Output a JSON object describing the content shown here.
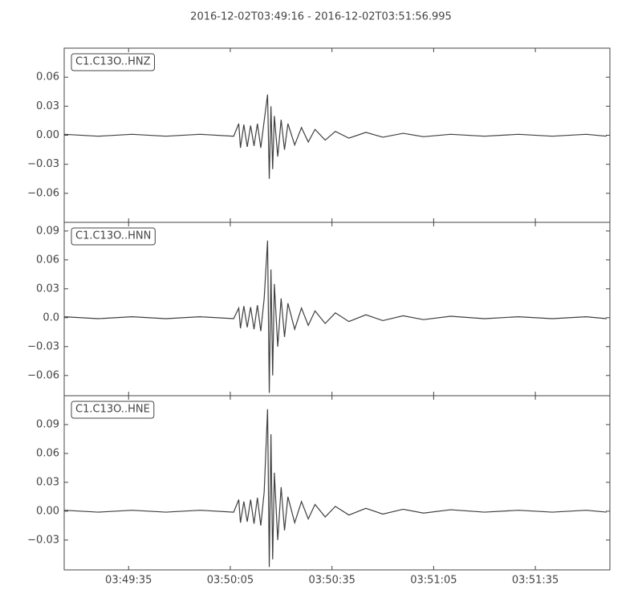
{
  "title": "2016-12-02T03:49:16  -  2016-12-02T03:51:56.995",
  "chart_data": [
    {
      "type": "line",
      "label": "C1.C13O..HNZ",
      "color": "#3f3f3f",
      "x": [
        13756,
        13766,
        13776,
        13786,
        13796,
        13806,
        13807.5,
        13808,
        13809,
        13810,
        13811,
        13812,
        13813,
        13814,
        13815,
        13816,
        13816.5,
        13817,
        13817.5,
        13818,
        13819,
        13820,
        13821,
        13822,
        13824,
        13826,
        13828,
        13830,
        13833,
        13836,
        13840,
        13845,
        13850,
        13856,
        13862,
        13870,
        13880,
        13890,
        13900,
        13910,
        13916
      ],
      "values": [
        0.001,
        -0.001,
        0.001,
        -0.001,
        0.001,
        -0.001,
        0.012,
        -0.013,
        0.011,
        -0.012,
        0.01,
        -0.011,
        0.012,
        -0.013,
        0.015,
        0.042,
        -0.045,
        0.03,
        -0.035,
        0.02,
        -0.022,
        0.016,
        -0.015,
        0.012,
        -0.01,
        0.008,
        -0.007,
        0.006,
        -0.005,
        0.004,
        -0.003,
        0.003,
        -0.002,
        0.002,
        -0.0015,
        0.001,
        -0.001,
        0.001,
        -0.001,
        0.001,
        -0.001
      ],
      "xlim": [
        13756,
        13916.995
      ],
      "ylim": [
        -0.09,
        0.09
      ],
      "yticks": [
        0.06,
        0.03,
        {
          "value": 0,
          "label": "0.00"
        },
        {
          "value": -0.03,
          "label": "−0.03"
        },
        {
          "value": -0.06,
          "label": "−0.06"
        }
      ]
    },
    {
      "type": "line",
      "label": "C1.C13O..HNN",
      "color": "#3f3f3f",
      "x": [
        13756,
        13766,
        13776,
        13786,
        13796,
        13806,
        13807.5,
        13808,
        13809,
        13810,
        13811,
        13812,
        13813,
        13814,
        13815,
        13816,
        13816.5,
        13817,
        13817.5,
        13818,
        13819,
        13820,
        13821,
        13822,
        13824,
        13826,
        13828,
        13830,
        13833,
        13836,
        13840,
        13845,
        13850,
        13856,
        13862,
        13870,
        13880,
        13890,
        13900,
        13910,
        13916
      ],
      "values": [
        0.001,
        -0.001,
        0.001,
        -0.001,
        0.001,
        -0.001,
        0.01,
        -0.011,
        0.012,
        -0.01,
        0.011,
        -0.012,
        0.013,
        -0.014,
        0.02,
        0.08,
        -0.078,
        0.05,
        -0.06,
        0.035,
        -0.03,
        0.02,
        -0.02,
        0.015,
        -0.012,
        0.01,
        -0.008,
        0.007,
        -0.006,
        0.005,
        -0.004,
        0.003,
        -0.003,
        0.002,
        -0.002,
        0.0015,
        -0.001,
        0.001,
        -0.001,
        0.001,
        -0.001
      ],
      "xlim": [
        13756,
        13916.995
      ],
      "ylim": [
        -0.081,
        0.099
      ],
      "yticks": [
        0.09,
        0.06,
        0.03,
        {
          "value": 0,
          "label": "0.0"
        },
        {
          "value": -0.03,
          "label": "−0.03"
        },
        {
          "value": -0.06,
          "label": "−0.06"
        }
      ]
    },
    {
      "type": "line",
      "label": "C1.C13O..HNE",
      "color": "#3f3f3f",
      "x": [
        13756,
        13766,
        13776,
        13786,
        13796,
        13806,
        13807.5,
        13808,
        13809,
        13810,
        13811,
        13812,
        13813,
        13814,
        13815,
        13816,
        13816.5,
        13817,
        13817.5,
        13818,
        13819,
        13820,
        13821,
        13822,
        13824,
        13826,
        13828,
        13830,
        13833,
        13836,
        13840,
        13845,
        13850,
        13856,
        13862,
        13870,
        13880,
        13890,
        13900,
        13910,
        13916
      ],
      "values": [
        0.001,
        -0.001,
        0.001,
        -0.001,
        0.001,
        -0.001,
        0.012,
        -0.012,
        0.01,
        -0.011,
        0.012,
        -0.013,
        0.014,
        -0.015,
        0.02,
        0.106,
        -0.058,
        0.08,
        -0.05,
        0.04,
        -0.03,
        0.025,
        -0.02,
        0.015,
        -0.012,
        0.01,
        -0.008,
        0.007,
        -0.006,
        0.005,
        -0.004,
        0.003,
        -0.003,
        0.002,
        -0.002,
        0.0015,
        -0.001,
        0.001,
        -0.001,
        0.001,
        -0.001
      ],
      "xlim": [
        13756,
        13916.995
      ],
      "ylim": [
        -0.061,
        0.12
      ],
      "yticks": [
        0.09,
        0.06,
        0.03,
        {
          "value": 0,
          "label": "0.00"
        },
        {
          "value": -0.03,
          "label": "−0.03"
        }
      ],
      "xticks": [
        {
          "value": 13775,
          "label": "03:49:35"
        },
        {
          "value": 13805,
          "label": "03:50:05"
        },
        {
          "value": 13835,
          "label": "03:50:35"
        },
        {
          "value": 13865,
          "label": "03:51:05"
        },
        {
          "value": 13895,
          "label": "03:51:35"
        }
      ]
    }
  ]
}
